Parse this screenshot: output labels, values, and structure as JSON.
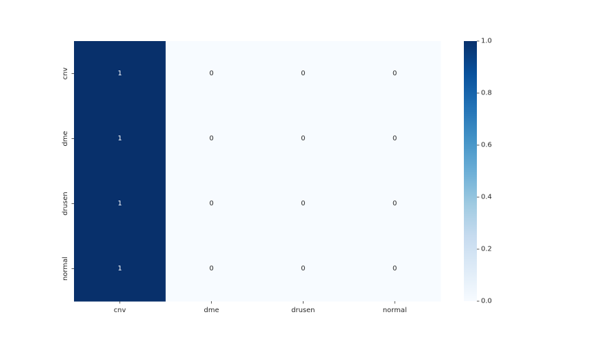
{
  "chart_data": {
    "type": "heatmap",
    "rows": [
      "cnv",
      "dme",
      "drusen",
      "normal"
    ],
    "columns": [
      "cnv",
      "dme",
      "drusen",
      "normal"
    ],
    "values": [
      [
        1,
        0,
        0,
        0
      ],
      [
        1,
        0,
        0,
        0
      ],
      [
        1,
        0,
        0,
        0
      ],
      [
        1,
        0,
        0,
        0
      ]
    ],
    "annotations_shown": true,
    "colormap": "Blues",
    "color_low": "#f7fbff",
    "color_high": "#08306b",
    "vmin": 0,
    "vmax": 1,
    "colorbar": {
      "ticks": [
        "0.0",
        "0.2",
        "0.4",
        "0.6",
        "0.8",
        "1.0"
      ],
      "tick_values": [
        0,
        0.2,
        0.4,
        0.6,
        0.8,
        1.0
      ]
    },
    "title": "",
    "xlabel": "",
    "ylabel": ""
  }
}
